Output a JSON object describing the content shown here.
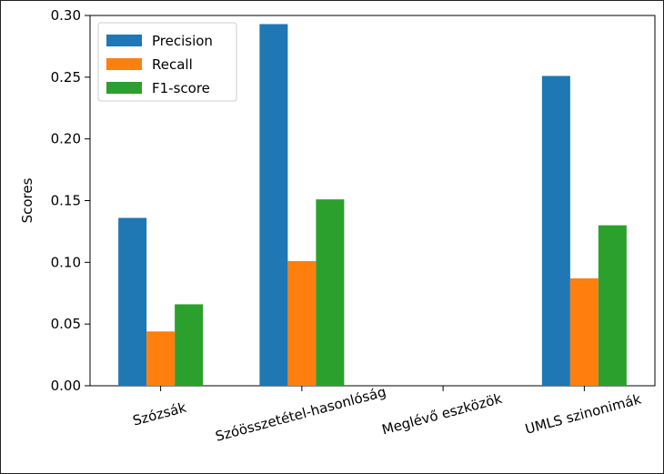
{
  "chart_data": {
    "type": "bar",
    "title": "",
    "xlabel": "",
    "ylabel": "Scores",
    "ylim": [
      0,
      0.3
    ],
    "yticks": [
      "0.00",
      "0.05",
      "0.10",
      "0.15",
      "0.20",
      "0.25",
      "0.30"
    ],
    "categories": [
      "Szózsák",
      "Szóösszetétel-hasonlóság",
      "Meglévő eszközök",
      "UMLS szinonimák"
    ],
    "series": [
      {
        "name": "Precision",
        "color": "#1f77b4",
        "values": [
          0.136,
          0.293,
          0.0,
          0.251
        ]
      },
      {
        "name": "Recall",
        "color": "#ff7f0e",
        "values": [
          0.044,
          0.101,
          0.0,
          0.087
        ]
      },
      {
        "name": "F1-score",
        "color": "#2ca02c",
        "values": [
          0.066,
          0.151,
          0.0,
          0.13
        ]
      }
    ],
    "legend": "top-left",
    "grid": false,
    "xtick_rotation_deg": -15
  }
}
